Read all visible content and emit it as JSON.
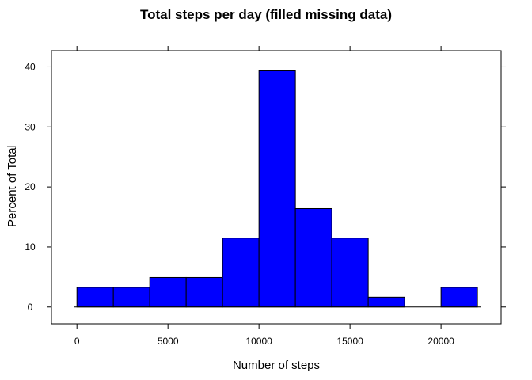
{
  "chart_data": {
    "type": "bar",
    "title": "Total steps per day (filled missing data)",
    "xlabel": "Number of steps",
    "ylabel": "Percent of Total",
    "bin_edges": [
      0,
      2000,
      4000,
      6000,
      8000,
      10000,
      12000,
      14000,
      16000,
      18000,
      20000,
      22000
    ],
    "values": [
      3.28,
      3.28,
      4.92,
      4.92,
      11.48,
      39.34,
      16.39,
      11.48,
      1.64,
      0,
      3.28
    ],
    "x_ticks": [
      0,
      5000,
      10000,
      15000,
      20000
    ],
    "x_tick_labels": [
      "0",
      "5000",
      "10000",
      "15000",
      "20000"
    ],
    "y_ticks": [
      0,
      10,
      20,
      30,
      40
    ],
    "y_tick_labels": [
      "0",
      "10",
      "20",
      "30",
      "40"
    ],
    "xlim": [
      -1400,
      23300
    ],
    "ylim": [
      -2.8,
      42.7
    ],
    "bar_color": "#0000ff",
    "grid": false,
    "legend": "none"
  }
}
